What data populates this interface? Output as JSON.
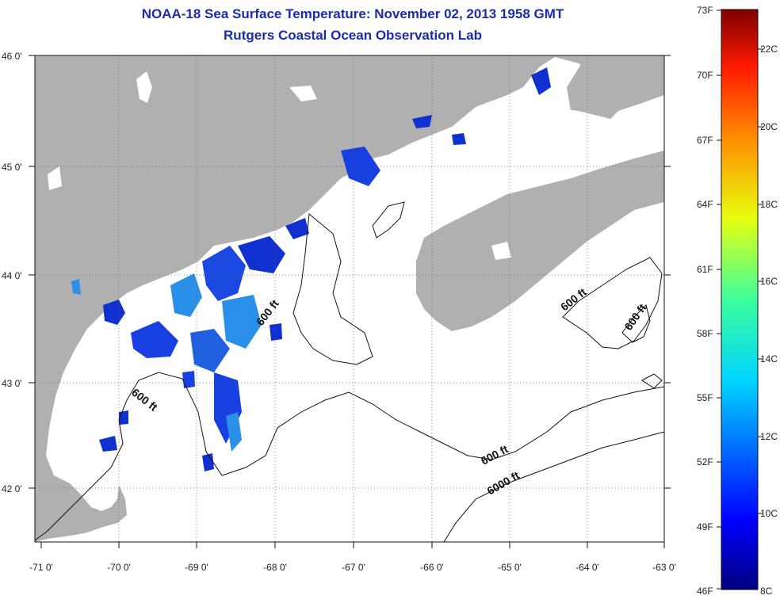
{
  "header": {
    "title": "NOAA-18 Sea Surface Temperature:  November 02, 2013 1958 GMT",
    "subtitle": "Rutgers Coastal Ocean Observation Lab"
  },
  "axes": {
    "lat_labels": [
      "46 0'",
      "45 0'",
      "44 0'",
      "43 0'",
      "42 0'"
    ],
    "lon_labels": [
      "-71 0'",
      "-70 0'",
      "-69 0'",
      "-68 0'",
      "-67 0'",
      "-66 0'",
      "-65 0'",
      "-64 0'",
      "-63 0'"
    ]
  },
  "contours": {
    "labels": [
      "600 ft",
      "600 ft",
      "600 ft",
      "600 ft",
      "600 ft",
      "6000 ft"
    ]
  },
  "colorbar": {
    "fahrenheit": [
      "73F",
      "70F",
      "67F",
      "64F",
      "61F",
      "58F",
      "55F",
      "52F",
      "49F",
      "46F"
    ],
    "celsius": [
      "22C",
      "20C",
      "18C",
      "16C",
      "14C",
      "12C",
      "10C",
      "8C"
    ]
  },
  "colors": {
    "land": "#b0b0b0",
    "title": "#1a2bb0",
    "sst_cold": "#1030d0",
    "sst_cool": "#2a8fe8"
  }
}
